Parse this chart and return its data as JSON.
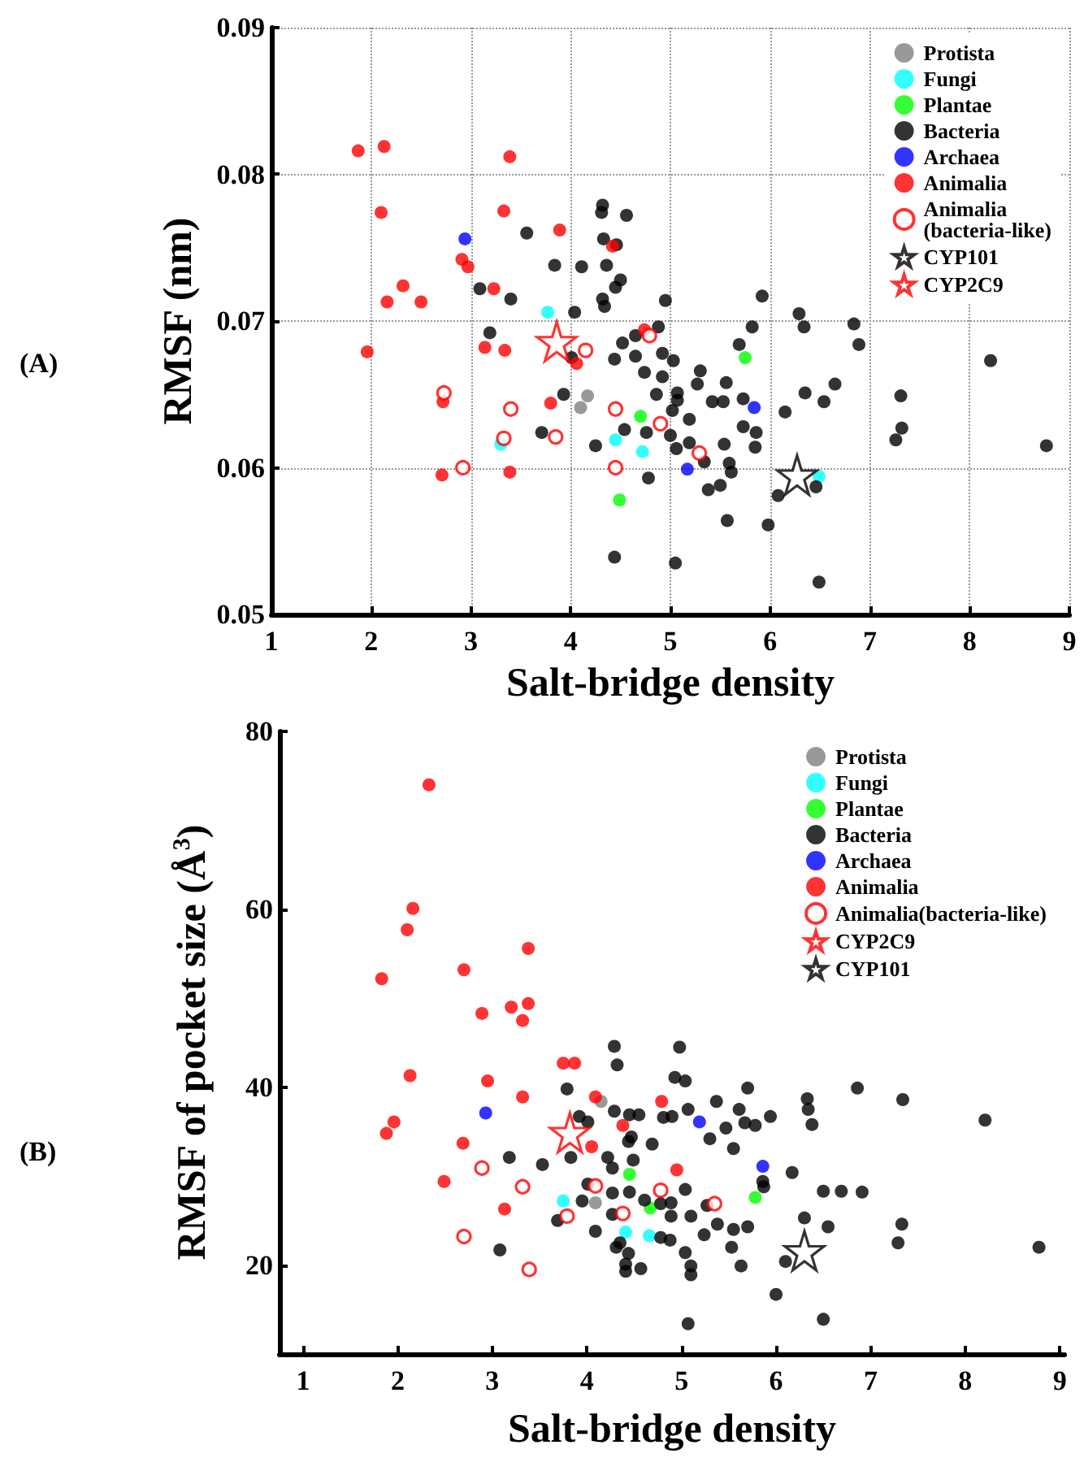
{
  "chart_data": [
    {
      "type": "scatter",
      "xlabel": "Salt-bridge density",
      "ylabel": "RMSF (nm)",
      "annotations": [
        "(A)"
      ],
      "xlim": [
        1,
        9
      ],
      "xticks": [
        1,
        2,
        3,
        4,
        5,
        6,
        7,
        8,
        9
      ],
      "ylim": [
        0.05,
        0.09
      ],
      "yticks": [
        0.05,
        0.06,
        0.07,
        0.08,
        0.09
      ],
      "grid": true,
      "legend": "top right",
      "series": [
        {
          "name": "Protista",
          "color": "#808080",
          "marker": "circle",
          "x": [
            4.17,
            4.1
          ],
          "values": [
            0.0649,
            0.0641
          ]
        },
        {
          "name": "Fungi",
          "color": "#00ffff",
          "marker": "circle",
          "x": [
            3.77,
            3.3,
            4.45,
            4.72,
            6.49
          ],
          "values": [
            0.0706,
            0.0616,
            0.0619,
            0.0611,
            0.0594
          ]
        },
        {
          "name": "Plantae",
          "color": "#00ff00",
          "marker": "circle",
          "x": [
            4.7,
            4.49,
            5.75
          ],
          "values": [
            0.0635,
            0.0578,
            0.0675
          ]
        },
        {
          "name": "Bacteria",
          "color": "#000000",
          "marker": "circle",
          "x": [
            4.32,
            4.31,
            4.56,
            3.56,
            4.33,
            4.46,
            3.84,
            4.11,
            4.36,
            4.5,
            4.45,
            3.09,
            3.4,
            4.32,
            4.34,
            4.04,
            3.19,
            4.52,
            4.44,
            4.01,
            3.93,
            3.71,
            4.25,
            4.44,
            4.95,
            5.92,
            6.29,
            6.34,
            6.84,
            6.89,
            5.82,
            5.69,
            4.88,
            4.65,
            4.65,
            4.92,
            5.03,
            4.74,
            4.92,
            4.86,
            5.07,
            5.07,
            5.3,
            5.27,
            5.56,
            5.42,
            5.53,
            5.73,
            5.73,
            5.86,
            5.85,
            6.15,
            6.35,
            6.54,
            6.65,
            7.31,
            7.32,
            7.26,
            8.21,
            8.77,
            4.54,
            4.76,
            5.02,
            5.0,
            5.06,
            5.19,
            5.19,
            5.34,
            5.38,
            5.5,
            5.54,
            5.59,
            5.61,
            5.57,
            4.78,
            6.08,
            5.98,
            6.46,
            6.49,
            5.05
          ],
          "values": [
            0.0779,
            0.0774,
            0.0772,
            0.076,
            0.0756,
            0.0752,
            0.0738,
            0.0737,
            0.0738,
            0.0728,
            0.0723,
            0.0722,
            0.0715,
            0.0715,
            0.071,
            0.0706,
            0.0692,
            0.0685,
            0.0674,
            0.0675,
            0.065,
            0.0624,
            0.0615,
            0.0539,
            0.0714,
            0.0717,
            0.0705,
            0.0696,
            0.0698,
            0.0684,
            0.0696,
            0.0684,
            0.0696,
            0.069,
            0.0676,
            0.0678,
            0.0673,
            0.0665,
            0.0662,
            0.065,
            0.0651,
            0.0646,
            0.0666,
            0.0657,
            0.0658,
            0.0645,
            0.0645,
            0.0647,
            0.0628,
            0.0624,
            0.0614,
            0.0638,
            0.0651,
            0.0645,
            0.0657,
            0.0649,
            0.0627,
            0.0619,
            0.0673,
            0.0615,
            0.0626,
            0.0624,
            0.0639,
            0.0622,
            0.0613,
            0.0633,
            0.0617,
            0.0604,
            0.0585,
            0.0588,
            0.0616,
            0.0603,
            0.0597,
            0.0564,
            0.0593,
            0.0581,
            0.0561,
            0.0587,
            0.0522,
            0.0535
          ]
        },
        {
          "name": "Archaea",
          "color": "#0000ff",
          "marker": "circle",
          "x": [
            2.94,
            5.84,
            5.17
          ],
          "values": [
            0.0756,
            0.0641,
            0.0599
          ]
        },
        {
          "name": "Animalia",
          "color": "#ff0000",
          "marker": "circle",
          "x": [
            1.87,
            2.13,
            2.1,
            2.32,
            2.16,
            2.5,
            1.96,
            3.39,
            3.33,
            3.89,
            2.91,
            2.97,
            3.23,
            3.14,
            3.34,
            2.71,
            3.39,
            3.8,
            4.06,
            4.42,
            2.72,
            4.74
          ],
          "values": [
            0.0816,
            0.0819,
            0.0774,
            0.0724,
            0.0713,
            0.0713,
            0.0679,
            0.0812,
            0.0775,
            0.0762,
            0.0742,
            0.0737,
            0.0722,
            0.0682,
            0.068,
            0.0595,
            0.0597,
            0.0644,
            0.0671,
            0.0751,
            0.0645,
            0.0694
          ]
        },
        {
          "name": "Animalia (bacteria-like)",
          "color": "#ff0000",
          "marker": "open circle",
          "x": [
            2.73,
            2.92,
            3.4,
            3.33,
            3.85,
            4.15,
            4.45,
            4.45,
            4.79,
            4.9,
            5.29
          ],
          "values": [
            0.0651,
            0.06,
            0.064,
            0.062,
            0.0621,
            0.068,
            0.064,
            0.06,
            0.069,
            0.063,
            0.061
          ]
        },
        {
          "name": "CYP101",
          "color": "#000000",
          "marker": "star",
          "x": [
            6.27
          ],
          "values": [
            0.0595
          ]
        },
        {
          "name": "CYP2C9",
          "color": "#ff0000",
          "marker": "star",
          "x": [
            3.86
          ],
          "values": [
            0.0686
          ]
        }
      ]
    },
    {
      "type": "scatter",
      "xlabel": "Salt-bridge density",
      "ylabel": "RMSF of pocket size (Å$^{3}$)",
      "annotations": [
        "(B)"
      ],
      "xlim": [
        0.75,
        9.05
      ],
      "xticks": [
        1,
        2,
        3,
        4,
        5,
        6,
        7,
        8,
        9
      ],
      "ylim": [
        10,
        80
      ],
      "yticks": [
        20,
        40,
        60,
        80
      ],
      "grid": false,
      "legend": "top right",
      "series": [
        {
          "name": "Protista",
          "color": "#808080",
          "marker": "circle",
          "x": [
            4.15,
            4.09
          ],
          "values": [
            38.4,
            27.0
          ]
        },
        {
          "name": "Fungi",
          "color": "#00ffff",
          "marker": "circle",
          "x": [
            3.75,
            4.41,
            4.66
          ],
          "values": [
            27.2,
            23.7,
            23.3
          ]
        },
        {
          "name": "Plantae",
          "color": "#00ff00",
          "marker": "circle",
          "x": [
            4.45,
            4.67,
            5.78
          ],
          "values": [
            30.2,
            26.4,
            27.6
          ]
        },
        {
          "name": "Bacteria",
          "color": "#000000",
          "marker": "circle",
          "x": [
            4.29,
            4.32,
            3.79,
            3.92,
            4.01,
            4.29,
            4.45,
            4.44,
            4.47,
            4.69,
            4.49,
            4.81,
            3.18,
            3.53,
            3.83,
            4.22,
            4.27,
            4.01,
            3.95,
            3.69,
            4.27,
            4.45,
            4.61,
            4.27,
            4.09,
            4.31,
            4.41,
            4.41,
            4.57,
            3.08,
            4.78,
            4.78,
            4.98,
            4.93,
            5.04,
            5.37,
            5.07,
            4.9,
            4.55,
            5.61,
            5.67,
            5.47,
            5.3,
            5.55,
            5.7,
            5.78,
            5.94,
            5.86,
            5.87,
            6.17,
            6.33,
            6.34,
            6.38,
            6.86,
            7.34,
            8.21,
            6.5,
            6.69,
            6.91,
            6.3,
            6.55,
            7.33,
            7.29,
            8.78,
            6.0,
            6.5,
            5.07,
            5.04,
            5.1,
            5.1,
            5.53,
            5.63,
            5.27,
            5.38,
            5.24,
            5.04,
            4.89,
            4.89,
            5.1,
            4.88,
            5.55,
            5.7,
            6.1,
            4.44,
            4.35
          ],
          "values": [
            44.6,
            42.5,
            39.8,
            36.7,
            36.1,
            37.3,
            36.9,
            33.9,
            34.4,
            33.6,
            31.8,
            36.6,
            32.1,
            31.3,
            32.1,
            32.1,
            30.9,
            29.1,
            27.2,
            25.0,
            28.1,
            28.2,
            27.3,
            25.7,
            23.8,
            22.0,
            20.1,
            19.3,
            19.6,
            21.7,
            23.1,
            26.9,
            44.5,
            41.1,
            40.7,
            38.4,
            37.5,
            36.7,
            36.9,
            37.5,
            36.0,
            35.4,
            34.2,
            33.1,
            39.9,
            35.7,
            36.7,
            29.4,
            28.8,
            30.4,
            38.7,
            37.5,
            35.8,
            39.9,
            38.6,
            36.3,
            28.3,
            28.3,
            28.2,
            25.3,
            24.3,
            24.6,
            22.5,
            22.0,
            16.7,
            13.9,
            13.4,
            21.4,
            19.9,
            18.9,
            22.0,
            19.9,
            26.7,
            24.6,
            23.4,
            28.5,
            27.0,
            25.5,
            25.5,
            22.8,
            24.0,
            24.3,
            20.4,
            21.3,
            22.5
          ]
        },
        {
          "name": "Archaea",
          "color": "#0000ff",
          "marker": "circle",
          "x": [
            2.93,
            5.19,
            5.86
          ],
          "values": [
            37.1,
            36.1,
            31.1
          ]
        },
        {
          "name": "Animalia",
          "color": "#ff0000",
          "marker": "circle",
          "x": [
            2.33,
            2.16,
            2.1,
            1.83,
            2.7,
            3.38,
            2.89,
            3.2,
            3.38,
            3.32,
            2.13,
            2.95,
            3.32,
            1.96,
            1.88,
            2.69,
            2.49,
            3.13,
            3.75,
            3.87,
            4.09,
            4.05,
            4.38,
            4.79,
            4.95
          ],
          "values": [
            74.0,
            60.1,
            57.7,
            52.2,
            53.2,
            55.6,
            48.3,
            49.0,
            49.4,
            47.5,
            41.3,
            40.7,
            38.9,
            36.1,
            34.8,
            33.7,
            29.4,
            26.3,
            42.7,
            42.7,
            38.9,
            33.3,
            35.7,
            38.4,
            30.7
          ]
        },
        {
          "name": "Animalia(bacteria-like)",
          "color": "#ff0000",
          "marker": "open circle",
          "x": [
            2.89,
            2.7,
            3.32,
            3.39,
            3.79,
            4.09,
            4.38,
            4.78,
            5.35
          ],
          "values": [
            30.9,
            23.2,
            28.8,
            19.5,
            25.5,
            28.9,
            25.8,
            28.4,
            26.9
          ]
        },
        {
          "name": "CYP2C9",
          "color": "#ff0000",
          "marker": "star",
          "x": [
            3.82
          ],
          "values": [
            34.9
          ]
        },
        {
          "name": "CYP101",
          "color": "#000000",
          "marker": "star",
          "x": [
            6.3
          ],
          "values": [
            21.6
          ]
        }
      ]
    }
  ]
}
